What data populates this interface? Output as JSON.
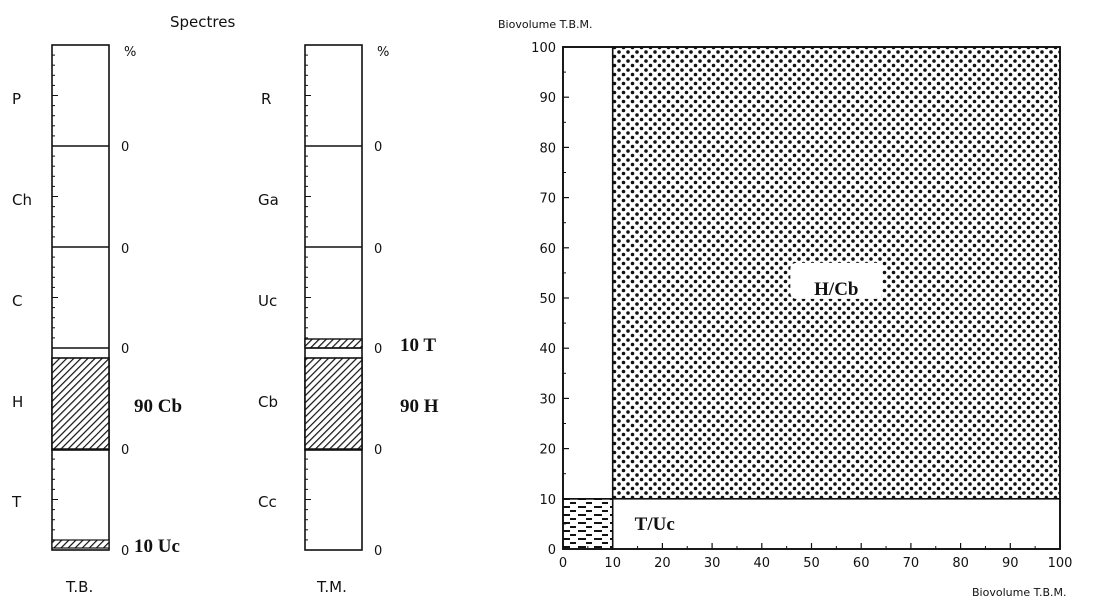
{
  "title": "Spectres",
  "percent_sign": "%",
  "zero": "0",
  "col_tb": {
    "caption": "T.B.",
    "classes": [
      "P",
      "Ch",
      "C",
      "H",
      "T"
    ],
    "values": [
      0,
      0,
      0,
      90,
      10
    ],
    "annotations": [
      "90 Cb",
      "10 Uc"
    ]
  },
  "col_tm": {
    "caption": "T.M.",
    "classes": [
      "R",
      "Ga",
      "Uc",
      "Cb",
      "Cc"
    ],
    "values": [
      0,
      0,
      10,
      90,
      0
    ],
    "annotations": [
      "10 T",
      "90 H"
    ]
  },
  "chart_data": {
    "type": "area",
    "ylabel": "Biovolume  T.B.M.",
    "xlabel": "Biovolume  T.B.M.",
    "xlim": [
      0,
      100
    ],
    "ylim": [
      0,
      100
    ],
    "x_ticks": [
      "0",
      "10",
      "20",
      "30",
      "40",
      "50",
      "60",
      "70",
      "80",
      "90",
      "100"
    ],
    "y_ticks": [
      "0",
      "10",
      "20",
      "30",
      "40",
      "50",
      "60",
      "70",
      "80",
      "90",
      "100"
    ],
    "regions": [
      {
        "label": "H/Cb",
        "x": [
          10,
          100
        ],
        "y": [
          10,
          100
        ],
        "pattern": "dots"
      },
      {
        "label": "T/Uc",
        "x": [
          10,
          100
        ],
        "y": [
          0,
          10
        ],
        "pattern": "none"
      },
      {
        "label": "",
        "x": [
          0,
          10
        ],
        "y": [
          0,
          10
        ],
        "pattern": "dashes"
      },
      {
        "label": "",
        "x": [
          0,
          10
        ],
        "y": [
          10,
          100
        ],
        "pattern": "none"
      }
    ]
  }
}
